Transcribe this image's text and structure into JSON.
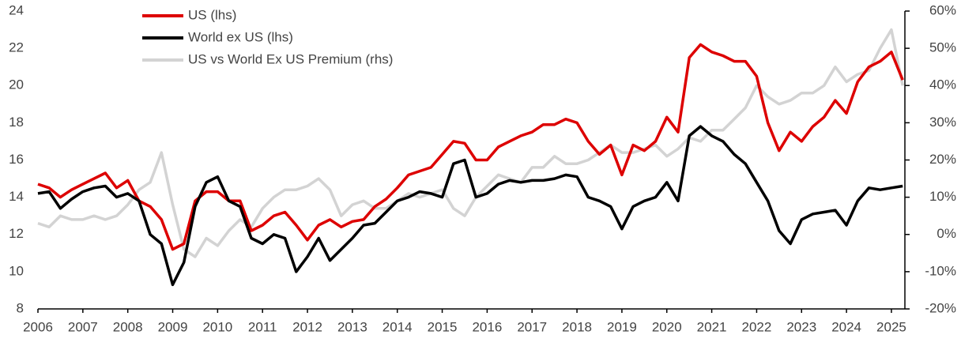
{
  "chart_data": {
    "type": "line",
    "x": [
      2006,
      2006.25,
      2006.5,
      2006.75,
      2007,
      2007.25,
      2007.5,
      2007.75,
      2008,
      2008.25,
      2008.5,
      2008.75,
      2009,
      2009.25,
      2009.5,
      2009.75,
      2010,
      2010.25,
      2010.5,
      2010.75,
      2011,
      2011.25,
      2011.5,
      2011.75,
      2012,
      2012.25,
      2012.5,
      2012.75,
      2013,
      2013.25,
      2013.5,
      2013.75,
      2014,
      2014.25,
      2014.5,
      2014.75,
      2015,
      2015.25,
      2015.5,
      2015.75,
      2016,
      2016.25,
      2016.5,
      2016.75,
      2017,
      2017.25,
      2017.5,
      2017.75,
      2018,
      2018.25,
      2018.5,
      2018.75,
      2019,
      2019.25,
      2019.5,
      2019.75,
      2020,
      2020.25,
      2020.5,
      2020.75,
      2021,
      2021.25,
      2021.5,
      2021.75,
      2022,
      2022.25,
      2022.5,
      2022.75,
      2023,
      2023.25,
      2023.5,
      2023.75,
      2024,
      2024.25,
      2024.5,
      2024.75,
      2025,
      2025.25
    ],
    "series": [
      {
        "name": "US (lhs)",
        "color": "#dd0000",
        "axis": "y",
        "values": [
          14.7,
          14.5,
          14.0,
          14.4,
          14.7,
          15.0,
          15.3,
          14.5,
          14.9,
          13.8,
          13.5,
          12.8,
          11.2,
          11.5,
          13.8,
          14.3,
          14.3,
          13.8,
          13.8,
          12.2,
          12.5,
          13.0,
          13.2,
          12.5,
          11.7,
          12.5,
          12.8,
          12.4,
          12.7,
          12.8,
          13.5,
          13.9,
          14.5,
          15.2,
          15.4,
          15.6,
          16.3,
          17.0,
          16.9,
          16.0,
          16.0,
          16.7,
          17.0,
          17.3,
          17.5,
          17.9,
          17.9,
          18.2,
          18.0,
          17.0,
          16.3,
          16.8,
          15.2,
          16.8,
          16.5,
          17.0,
          18.3,
          17.5,
          21.5,
          22.2,
          21.8,
          21.6,
          21.3,
          21.3,
          20.5,
          18.0,
          16.5,
          17.5,
          17.0,
          17.8,
          18.3,
          19.2,
          18.5,
          20.2,
          21.0,
          21.3,
          21.8,
          20.3
        ]
      },
      {
        "name": "World ex US (lhs)",
        "color": "#000000",
        "axis": "y",
        "values": [
          14.2,
          14.3,
          13.4,
          13.9,
          14.3,
          14.5,
          14.6,
          14.0,
          14.2,
          13.8,
          12.0,
          11.5,
          9.3,
          10.5,
          13.5,
          14.8,
          15.1,
          13.8,
          13.5,
          11.8,
          11.5,
          12.0,
          11.8,
          10.0,
          10.8,
          11.8,
          10.6,
          11.2,
          11.8,
          12.5,
          12.6,
          13.2,
          13.8,
          14.0,
          14.3,
          14.2,
          14.0,
          15.8,
          16.0,
          14.0,
          14.2,
          14.7,
          14.9,
          14.8,
          14.9,
          14.9,
          15.0,
          15.2,
          15.1,
          14.0,
          13.8,
          13.5,
          12.3,
          13.5,
          13.8,
          14.0,
          14.8,
          13.8,
          17.3,
          17.8,
          17.3,
          17.0,
          16.3,
          15.8,
          14.8,
          13.8,
          12.2,
          11.5,
          12.8,
          13.1,
          13.2,
          13.3,
          12.5,
          13.8,
          14.5,
          14.4,
          14.5,
          14.6
        ]
      },
      {
        "name": "US vs World Ex US Premium (rhs)",
        "color": "#d3d3d3",
        "axis": "y2",
        "values": [
          3,
          2,
          5,
          4,
          4,
          5,
          4,
          5,
          8,
          12,
          14,
          22,
          8,
          -4,
          -6,
          -1,
          -3,
          1,
          4,
          2,
          7,
          10,
          12,
          12,
          13,
          15,
          12,
          5,
          8,
          9,
          7,
          7,
          9,
          11,
          10,
          11,
          12,
          7,
          5,
          10,
          13,
          16,
          15,
          14,
          18,
          18,
          21,
          19,
          19,
          20,
          22,
          24,
          22,
          22,
          23,
          24,
          21,
          23,
          26,
          25,
          28,
          28,
          31,
          34,
          40,
          37,
          35,
          36,
          38,
          38,
          40,
          45,
          41,
          43,
          44,
          50,
          55,
          40
        ]
      }
    ],
    "xlim": [
      2006,
      2025.3
    ],
    "xticks": [
      2006,
      2007,
      2008,
      2009,
      2010,
      2011,
      2012,
      2013,
      2014,
      2015,
      2016,
      2017,
      2018,
      2019,
      2020,
      2021,
      2022,
      2023,
      2024,
      2025
    ],
    "ylim": [
      8,
      24
    ],
    "yticks": [
      8,
      10,
      12,
      14,
      16,
      18,
      20,
      22,
      24
    ],
    "y2lim": [
      -20,
      60
    ],
    "y2ticks": [
      {
        "value": -20,
        "label": "-20%"
      },
      {
        "value": -10,
        "label": "-10%"
      },
      {
        "value": 0,
        "label": "0%"
      },
      {
        "value": 10,
        "label": "10%"
      },
      {
        "value": 20,
        "label": "20%"
      },
      {
        "value": 30,
        "label": "30%"
      },
      {
        "value": 40,
        "label": "40%"
      },
      {
        "value": 50,
        "label": "50%"
      },
      {
        "value": 60,
        "label": "60%"
      }
    ],
    "legend": "upper left"
  }
}
